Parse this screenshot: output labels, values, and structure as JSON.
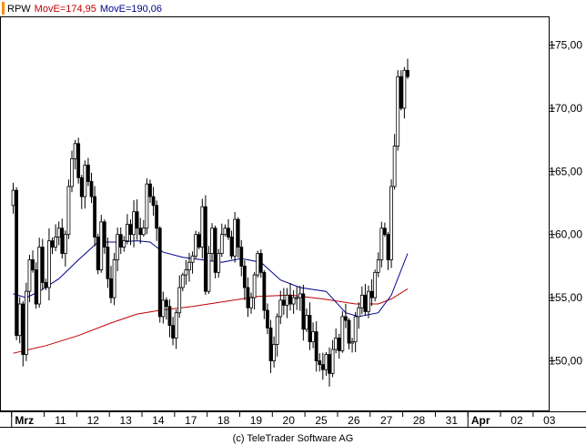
{
  "legend": {
    "symbol": "RPW",
    "ma1": "MovE=174,95",
    "ma2": "MovE=190,06",
    "colors": {
      "symbol": "#000000",
      "ma1": "#c00000",
      "ma2": "#00008b",
      "swatch": "#ff8c00"
    }
  },
  "copyright": "(c) TeleTrader Software AG",
  "chart_data": {
    "type": "candlestick",
    "grid": false,
    "legend_placement": "top-left",
    "ylim": [
      146.0,
      177.2
    ],
    "y_ticks": [
      {
        "value": 150,
        "label": "150,00"
      },
      {
        "value": 155,
        "label": "155,00"
      },
      {
        "value": 160,
        "label": "160,00"
      },
      {
        "value": 165,
        "label": "165,00"
      },
      {
        "value": 170,
        "label": "170,00"
      },
      {
        "value": 175,
        "label": "175,00"
      }
    ],
    "x_ticks": [
      "Mrz",
      "11",
      "12",
      "13",
      "14",
      "17",
      "18",
      "19",
      "20",
      "25",
      "26",
      "27",
      "28",
      "31",
      "Apr",
      "02",
      "03"
    ],
    "x_major": [
      "Mrz",
      "Apr"
    ],
    "bars_per_day": 10,
    "close_series": [
      163.5,
      152.0,
      154.5,
      150.5,
      155.5,
      158.0,
      157.2,
      154.5,
      159.0,
      156.2,
      155.8,
      159.5,
      159.0,
      159.8,
      160.5,
      158.5,
      160.0,
      163.8,
      166.0,
      167.2,
      164.5,
      163.0,
      165.5,
      164.2,
      163.0,
      159.8,
      157.2,
      161.0,
      159.0,
      156.5,
      155.0,
      158.0,
      160.0,
      159.0,
      159.5,
      160.8,
      160.0,
      161.8,
      160.5,
      160.0,
      160.5,
      164.0,
      163.0,
      162.3,
      160.5,
      153.5,
      154.8,
      154.3,
      152.8,
      151.8,
      153.8,
      155.8,
      156.8,
      157.2,
      157.8,
      158.3,
      160.0,
      159.0,
      162.2,
      155.5,
      158.5,
      160.5,
      157.0,
      158.5,
      160.0,
      160.5,
      159.8,
      158.3,
      161.2,
      159.0,
      157.5,
      155.8,
      154.2,
      155.0,
      156.8,
      158.5,
      157.0,
      154.0,
      152.6,
      150.0,
      151.3,
      153.5,
      154.8,
      154.4,
      155.2,
      154.5,
      155.0,
      155.0,
      155.3,
      152.5,
      153.6,
      151.5,
      152.3,
      150.0,
      149.7,
      149.3,
      150.5,
      149.0,
      150.9,
      151.8,
      150.8,
      153.5,
      153.2,
      151.4,
      151.5,
      153.5,
      154.2,
      155.2,
      153.9,
      155.5,
      155.0,
      157.0,
      158.0,
      160.5,
      160.0,
      158.0,
      163.8,
      167.0,
      172.5,
      170.0,
      173.0,
      172.5
    ],
    "moving_averages": [
      {
        "name": "MovE=174,95",
        "color": "#c00000",
        "points": [
          [
            0,
            150.6
          ],
          [
            10,
            151.2
          ],
          [
            20,
            152.0
          ],
          [
            30,
            153.0
          ],
          [
            38,
            153.7
          ],
          [
            45,
            154.0
          ],
          [
            55,
            154.3
          ],
          [
            65,
            154.7
          ],
          [
            75,
            155.1
          ],
          [
            85,
            155.2
          ],
          [
            95,
            154.9
          ],
          [
            105,
            154.5
          ],
          [
            112,
            154.5
          ],
          [
            116,
            154.9
          ],
          [
            121,
            155.7
          ]
        ]
      },
      {
        "name": "MovE=190,06",
        "color": "#00008b",
        "points": [
          [
            0,
            155.3
          ],
          [
            4,
            155.0
          ],
          [
            8,
            155.5
          ],
          [
            14,
            156.5
          ],
          [
            20,
            158.0
          ],
          [
            26,
            159.4
          ],
          [
            32,
            159.4
          ],
          [
            38,
            159.5
          ],
          [
            42,
            159.4
          ],
          [
            46,
            158.6
          ],
          [
            52,
            158.2
          ],
          [
            58,
            158.0
          ],
          [
            64,
            157.8
          ],
          [
            70,
            158.1
          ],
          [
            76,
            157.8
          ],
          [
            82,
            156.4
          ],
          [
            88,
            155.8
          ],
          [
            96,
            155.5
          ],
          [
            102,
            153.8
          ],
          [
            106,
            153.5
          ],
          [
            112,
            153.8
          ],
          [
            116,
            155.2
          ],
          [
            121,
            158.5
          ]
        ]
      }
    ]
  }
}
